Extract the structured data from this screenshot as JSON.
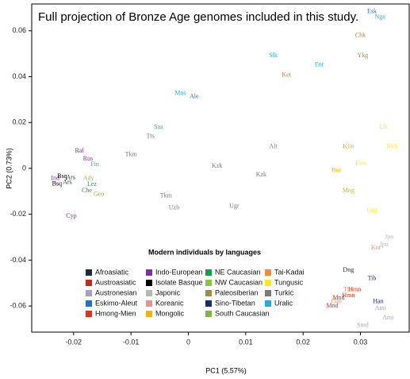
{
  "chart_data": {
    "type": "scatter",
    "title": "Full projection of Bronze Age genomes included in this study.",
    "xlabel": "PC1 (5.57%)",
    "ylabel": "PC2 (0.73%)",
    "legend_title": "Modern individuals by languages",
    "xlim": [
      -0.0273,
      0.0385
    ],
    "ylim": [
      -0.0714,
      0.0717
    ],
    "xticks": [
      -0.02,
      -0.01,
      0,
      0.01,
      0.02,
      0.03
    ],
    "yticks": [
      -0.06,
      -0.04,
      -0.02,
      0,
      0.02,
      0.04,
      0.06
    ],
    "series": [
      {
        "name": "Afroasiatic",
        "color": "#1b2a3c",
        "labels": [
          "Ars",
          "Ars"
        ],
        "x": [
          -0.0211,
          -0.0205
        ],
        "values": [
          -0.0062,
          -0.004
        ]
      },
      {
        "name": "Austroasiatic",
        "color": "#c4281e",
        "labels": [
          "Mnd",
          "Mnd"
        ],
        "x": [
          0.0251,
          0.0262
        ],
        "values": [
          -0.06,
          -0.0565
        ]
      },
      {
        "name": "Austronesian",
        "color": "#a89cc8",
        "labels": [
          "Smd",
          "Ami",
          "Ami"
        ],
        "x": [
          0.0304,
          0.0348,
          0.0335
        ],
        "values": [
          -0.0686,
          -0.0652,
          -0.061
        ]
      },
      {
        "name": "Eskimo-Aleut",
        "color": "#1f74c4",
        "labels": [
          "Ale",
          "Esk"
        ],
        "x": [
          0.001,
          0.032
        ],
        "values": [
          0.0312,
          0.0683
        ]
      },
      {
        "name": "Hmong-Mien",
        "color": "#e8331c",
        "labels": [
          "Hmn",
          "Hmn"
        ],
        "x": [
          0.0279,
          0.029
        ],
        "values": [
          -0.0555,
          -0.053
        ]
      },
      {
        "name": "Indo-European",
        "color": "#7b2fa8",
        "labels": [
          "Ral",
          "Cyp",
          "Ind",
          "Rus"
        ],
        "x": [
          -0.019,
          -0.0204,
          -0.0232,
          -0.0175
        ],
        "values": [
          0.0076,
          -0.0208,
          -0.0045,
          0.004
        ]
      },
      {
        "name": "Isolate Basque",
        "color": "#000000",
        "labels": [
          "Bsq",
          "Bsq"
        ],
        "x": [
          -0.0229,
          -0.022
        ],
        "values": [
          -0.0069,
          -0.0035
        ]
      },
      {
        "name": "Japonic",
        "color": "#b8b8b8",
        "labels": [
          "Jpn",
          "Jpn"
        ],
        "x": [
          0.0341,
          0.035
        ],
        "values": [
          -0.0333,
          -0.03
        ]
      },
      {
        "name": "Koreanic",
        "color": "#e0968a",
        "labels": [
          "Kor"
        ],
        "x": [
          0.0327
        ],
        "values": [
          -0.0347
        ]
      },
      {
        "name": "Mongolic",
        "color": "#f2b400",
        "labels": [
          "Klm",
          "Bur",
          "Mng"
        ],
        "x": [
          0.0279,
          0.0258,
          0.0279
        ],
        "values": [
          0.0094,
          -0.001,
          -0.0097
        ]
      },
      {
        "name": "NE Caucasian",
        "color": "#1a9a4a",
        "labels": [
          "Che",
          "Lez"
        ],
        "x": [
          -0.0177,
          -0.0168
        ],
        "values": [
          -0.0097,
          -0.007
        ]
      },
      {
        "name": "NW Caucasian",
        "color": "#8cc63e",
        "labels": [
          "Ady"
        ],
        "x": [
          -0.0174
        ],
        "values": [
          -0.0045
        ]
      },
      {
        "name": "Paleosiberian",
        "color": "#a08848",
        "labels": [
          "Ket",
          "Ykg",
          "Chk"
        ],
        "x": [
          0.0171,
          0.0304,
          0.03
        ],
        "values": [
          0.0406,
          0.0492,
          0.0579
        ]
      },
      {
        "name": "Sino-Tibetan",
        "color": "#1a2a6c",
        "labels": [
          "Dng",
          "Han",
          "Tib"
        ],
        "x": [
          0.0279,
          0.0331,
          0.032
        ],
        "values": [
          -0.0444,
          -0.0582,
          -0.048
        ]
      },
      {
        "name": "South Caucasian",
        "color": "#8ab04a",
        "labels": [
          "Geo"
        ],
        "x": [
          -0.0156
        ],
        "values": [
          -0.0114
        ]
      },
      {
        "name": "Tai-Kadai",
        "color": "#f08a40",
        "labels": [
          "Cub",
          "Tha"
        ],
        "x": [
          0.0258,
          0.0279
        ],
        "values": [
          -0.0582,
          -0.053
        ]
      },
      {
        "name": "Tungusic",
        "color": "#ffe81a",
        "labels": [
          "Nvh",
          "Ulc",
          "Udg",
          "Evn"
        ],
        "x": [
          0.0355,
          0.0341,
          0.032,
          0.03
        ],
        "values": [
          0.0094,
          0.018,
          -0.0184,
          0.002
        ]
      },
      {
        "name": "Turkic",
        "color": "#7a7a7a",
        "labels": [
          "Tkm",
          "Uzb",
          "Tts",
          "Alt",
          "Kzk",
          "Ugr",
          "Tkm",
          "Kzk"
        ],
        "x": [
          -0.0039,
          -0.0025,
          -0.0066,
          0.0148,
          0.0127,
          0.008,
          -0.01,
          0.005
        ],
        "values": [
          -0.0121,
          -0.0173,
          0.0139,
          0.0094,
          -0.0028,
          -0.0166,
          0.006,
          0.001
        ]
      },
      {
        "name": "Uralic",
        "color": "#2aa8e0",
        "labels": [
          "Mns",
          "Slk",
          "Ent",
          "Nga",
          "Saa",
          "Fin"
        ],
        "x": [
          -0.0014,
          0.0148,
          0.0228,
          0.0334,
          -0.0052,
          -0.0163
        ],
        "values": [
          0.0326,
          0.0492,
          0.0451,
          0.0659,
          0.018,
          0.0017
        ]
      }
    ]
  }
}
